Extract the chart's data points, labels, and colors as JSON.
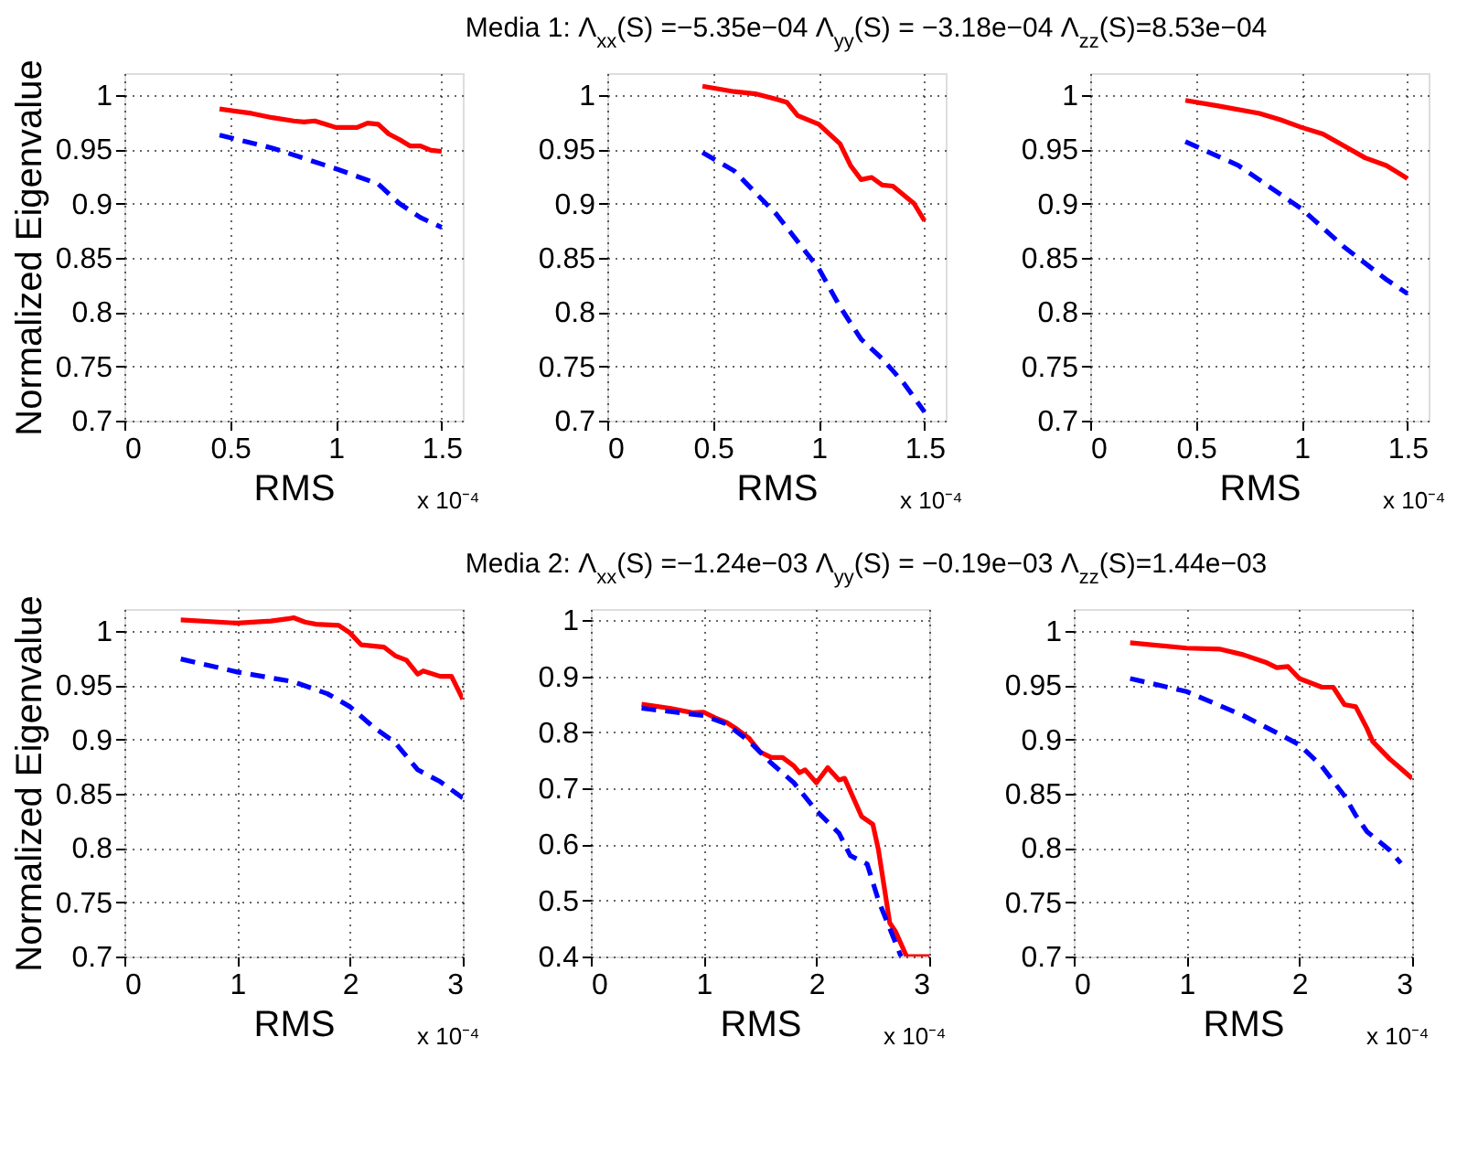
{
  "chart_data": [
    {
      "type": "line",
      "ylabel": "Normalized Eigenvalue",
      "xlabel": "RMS",
      "annotations": [
        "x 10⁻⁴"
      ],
      "xlim": [
        0,
        1.6
      ],
      "ylim": [
        0.7,
        1.02
      ],
      "xticks": [
        0,
        0.5,
        1,
        1.5
      ],
      "yticks": [
        0.7,
        0.75,
        0.8,
        0.85,
        0.9,
        0.95,
        1
      ],
      "grid": true,
      "series": [
        {
          "color": "#ff0000",
          "line_style": "solid",
          "x": [
            0.45,
            0.6,
            0.7,
            0.8,
            0.85,
            0.9,
            0.95,
            1.0,
            1.1,
            1.15,
            1.2,
            1.25,
            1.3,
            1.35,
            1.4,
            1.45,
            1.5
          ],
          "values": [
            0.987,
            0.983,
            0.979,
            0.976,
            0.975,
            0.976,
            0.973,
            0.97,
            0.97,
            0.974,
            0.973,
            0.964,
            0.959,
            0.953,
            0.953,
            0.949,
            0.948
          ]
        },
        {
          "color": "#0000ff",
          "line_style": "dashed",
          "x": [
            0.45,
            0.7,
            1.0,
            1.2,
            1.3,
            1.4,
            1.5
          ],
          "values": [
            0.963,
            0.951,
            0.932,
            0.918,
            0.9,
            0.887,
            0.878
          ]
        }
      ]
    },
    {
      "type": "line",
      "title": "Media 1: Λ$_{xx}$(S) =−5.35e−04  Λ$_{yy}$(S) = −3.18e−04  Λ$_{zz}$(S)=8.53e−04",
      "xlabel": "RMS",
      "annotations": [
        "x 10⁻⁴"
      ],
      "xlim": [
        0,
        1.6
      ],
      "ylim": [
        0.7,
        1.02
      ],
      "xticks": [
        0,
        0.5,
        1,
        1.5
      ],
      "yticks": [
        0.7,
        0.75,
        0.8,
        0.85,
        0.9,
        0.95,
        1
      ],
      "grid": true,
      "series": [
        {
          "color": "#ff0000",
          "line_style": "solid",
          "x": [
            0.45,
            0.6,
            0.7,
            0.8,
            0.85,
            0.9,
            1.0,
            1.1,
            1.15,
            1.2,
            1.25,
            1.3,
            1.35,
            1.4,
            1.45,
            1.5
          ],
          "values": [
            1.008,
            1.003,
            1.001,
            0.996,
            0.993,
            0.981,
            0.973,
            0.955,
            0.935,
            0.922,
            0.924,
            0.917,
            0.916,
            0.908,
            0.9,
            0.884
          ]
        },
        {
          "color": "#0000ff",
          "line_style": "dashed",
          "x": [
            0.45,
            0.6,
            0.8,
            1.0,
            1.1,
            1.2,
            1.3,
            1.4,
            1.5
          ],
          "values": [
            0.947,
            0.93,
            0.89,
            0.84,
            0.805,
            0.775,
            0.757,
            0.735,
            0.708
          ]
        }
      ]
    },
    {
      "type": "line",
      "xlabel": "RMS",
      "annotations": [
        "x 10⁻⁴"
      ],
      "xlim": [
        0,
        1.6
      ],
      "ylim": [
        0.7,
        1.02
      ],
      "xticks": [
        0,
        0.5,
        1,
        1.5
      ],
      "yticks": [
        0.7,
        0.75,
        0.8,
        0.85,
        0.9,
        0.95,
        1
      ],
      "grid": true,
      "series": [
        {
          "color": "#ff0000",
          "line_style": "solid",
          "x": [
            0.45,
            0.6,
            0.8,
            0.9,
            1.0,
            1.1,
            1.2,
            1.3,
            1.4,
            1.5
          ],
          "values": [
            0.995,
            0.99,
            0.983,
            0.977,
            0.97,
            0.964,
            0.953,
            0.942,
            0.935,
            0.923
          ]
        },
        {
          "color": "#0000ff",
          "line_style": "dashed",
          "x": [
            0.45,
            0.7,
            1.0,
            1.2,
            1.4,
            1.5
          ],
          "values": [
            0.957,
            0.935,
            0.895,
            0.86,
            0.83,
            0.817
          ]
        }
      ]
    },
    {
      "type": "line",
      "ylabel": "Normalized Eigenvalue",
      "xlabel": "RMS",
      "annotations": [
        "x 10⁻⁴"
      ],
      "xlim": [
        0,
        3
      ],
      "ylim": [
        0.7,
        1.02
      ],
      "xticks": [
        0,
        1,
        2,
        3
      ],
      "yticks": [
        0.7,
        0.75,
        0.8,
        0.85,
        0.9,
        0.95,
        1
      ],
      "grid": true,
      "series": [
        {
          "color": "#ff0000",
          "line_style": "solid",
          "x": [
            0.5,
            1.0,
            1.3,
            1.45,
            1.5,
            1.6,
            1.7,
            1.9,
            2.0,
            2.1,
            2.3,
            2.4,
            2.5,
            2.6,
            2.65,
            2.8,
            2.9,
            3.0
          ],
          "values": [
            1.01,
            1.007,
            1.009,
            1.011,
            1.012,
            1.008,
            1.006,
            1.005,
            0.998,
            0.987,
            0.985,
            0.977,
            0.973,
            0.96,
            0.963,
            0.958,
            0.958,
            0.937
          ]
        },
        {
          "color": "#0000ff",
          "line_style": "dashed",
          "x": [
            0.5,
            1.0,
            1.5,
            1.8,
            2.0,
            2.2,
            2.4,
            2.6,
            2.8,
            3.0
          ],
          "values": [
            0.974,
            0.962,
            0.953,
            0.942,
            0.93,
            0.912,
            0.897,
            0.872,
            0.861,
            0.846
          ]
        }
      ]
    },
    {
      "type": "line",
      "title": "Media 2: Λ$_{xx}$(S) =−1.24e−03  Λ$_{yy}$(S) = −0.19e−03  Λ$_{zz}$(S)=1.44e−03",
      "xlabel": "RMS",
      "annotations": [
        "x 10⁻⁴"
      ],
      "xlim": [
        0,
        3
      ],
      "ylim": [
        0.4,
        1.02
      ],
      "xticks": [
        0,
        1,
        2,
        3
      ],
      "yticks": [
        0.4,
        0.5,
        0.6,
        0.7,
        0.8,
        0.9,
        1
      ],
      "grid": true,
      "series": [
        {
          "color": "#ff0000",
          "line_style": "solid",
          "x": [
            0.45,
            0.7,
            0.9,
            1.0,
            1.1,
            1.2,
            1.3,
            1.4,
            1.5,
            1.6,
            1.7,
            1.8,
            1.85,
            1.9,
            2.0,
            2.1,
            2.2,
            2.25,
            2.4,
            2.5,
            2.55,
            2.65,
            2.7,
            2.8,
            3.0
          ],
          "values": [
            0.85,
            0.843,
            0.835,
            0.836,
            0.826,
            0.818,
            0.805,
            0.79,
            0.765,
            0.755,
            0.755,
            0.74,
            0.728,
            0.733,
            0.71,
            0.737,
            0.715,
            0.718,
            0.65,
            0.636,
            0.59,
            0.46,
            0.445,
            0.4,
            0.4
          ]
        },
        {
          "color": "#0000ff",
          "line_style": "dashed",
          "x": [
            0.45,
            1.0,
            1.2,
            1.4,
            1.6,
            1.8,
            2.0,
            2.2,
            2.3,
            2.45,
            2.55,
            2.65,
            2.75
          ],
          "values": [
            0.843,
            0.83,
            0.815,
            0.785,
            0.745,
            0.71,
            0.66,
            0.62,
            0.58,
            0.565,
            0.5,
            0.45,
            0.4
          ]
        }
      ]
    },
    {
      "type": "line",
      "xlabel": "RMS",
      "annotations": [
        "x 10⁻⁴"
      ],
      "xlim": [
        0,
        3
      ],
      "ylim": [
        0.7,
        1.02
      ],
      "xticks": [
        0,
        1,
        2,
        3
      ],
      "yticks": [
        0.7,
        0.75,
        0.8,
        0.85,
        0.9,
        0.95,
        1
      ],
      "grid": true,
      "series": [
        {
          "color": "#ff0000",
          "line_style": "solid",
          "x": [
            0.5,
            1.0,
            1.3,
            1.5,
            1.7,
            1.8,
            1.9,
            2.0,
            2.2,
            2.3,
            2.4,
            2.5,
            2.6,
            2.65,
            2.8,
            2.9,
            3.0
          ],
          "values": [
            0.989,
            0.984,
            0.983,
            0.978,
            0.971,
            0.966,
            0.967,
            0.956,
            0.948,
            0.948,
            0.932,
            0.93,
            0.91,
            0.898,
            0.882,
            0.873,
            0.864
          ]
        },
        {
          "color": "#0000ff",
          "line_style": "dashed",
          "x": [
            0.5,
            1.0,
            1.5,
            1.8,
            2.0,
            2.2,
            2.4,
            2.5,
            2.6,
            2.8,
            2.9
          ],
          "values": [
            0.956,
            0.944,
            0.922,
            0.906,
            0.895,
            0.875,
            0.848,
            0.83,
            0.815,
            0.798,
            0.786
          ]
        }
      ]
    }
  ]
}
